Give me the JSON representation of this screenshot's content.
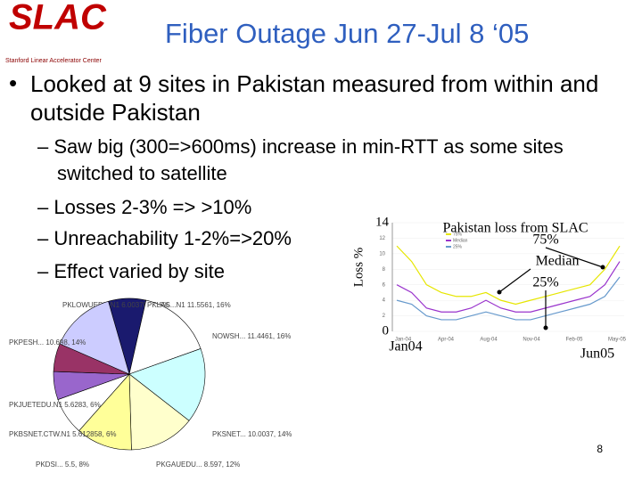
{
  "header": {
    "logo": "SLAC",
    "logo_subtitle": "Stanford Linear Accelerator Center",
    "title": "Fiber Outage Jun 27-Jul 8 ‘05"
  },
  "bullet": "Looked at 9 sites in Pakistan measured from within and outside Pakistan",
  "sub_bullets": [
    "– Saw big (300=>600ms) increase in min-RTT as some sites switched to satellite",
    "– Losses 2-3% => >10%",
    "– Unreachability 1-2%=>20%",
    "– Effect varied by site"
  ],
  "pie": {
    "slices": [
      {
        "label": "PKLOWUEDU.N1 6.0037037, 8%",
        "value": 8,
        "color": "#1a1a6e"
      },
      {
        "label": "PKLAS...N1 11.5561, 16%",
        "value": 16,
        "color": "#ffffff"
      },
      {
        "label": "NOWSH... 11.4461, 16%",
        "value": 16,
        "color": "#ccffff"
      },
      {
        "label": "PKSNET... 10.0037, 14%",
        "value": 14,
        "color": "#ffffcc"
      },
      {
        "label": "PKGAUEDU... 8.597, 12%",
        "value": 12,
        "color": "#ffff99"
      },
      {
        "label": "PKDSI... 5.5, 8%",
        "value": 8,
        "color": "#ffffff"
      },
      {
        "label": "PKBSNET.CTW.N1 5.612858, 6%",
        "value": 6,
        "color": "#9966cc"
      },
      {
        "label": "PKJUETEDU.N1 5.6283, 6%",
        "value": 6,
        "color": "#993366"
      },
      {
        "label": "PKPESH... 10.698, 14%",
        "value": 14,
        "color": "#ccccff"
      }
    ]
  },
  "loss_chart": {
    "type": "line",
    "title": "Pakistan loss from SLAC",
    "y_label": "Loss %",
    "ylim": [
      0,
      14
    ],
    "yticks": [
      {
        "value": 0,
        "label": "0"
      },
      2,
      4,
      6,
      8,
      10,
      12,
      {
        "value": 14,
        "label": "14"
      }
    ],
    "x_labels": [
      "Jan04",
      "Jun05"
    ],
    "x_ticks": [
      "Jan-04",
      "Apr-04",
      "Aug-04",
      "Nov-04",
      "Feb-05",
      "May-05"
    ],
    "series": [
      {
        "name": "75%",
        "color": "#e6e600",
        "values": [
          11,
          9,
          6,
          5,
          4.5,
          4.5,
          5,
          4,
          3.5,
          4,
          4.5,
          5,
          5.5,
          6,
          8,
          11
        ]
      },
      {
        "name": "Median",
        "color": "#9933cc",
        "values": [
          6,
          5,
          3,
          2.5,
          2.5,
          3,
          4,
          3,
          2.5,
          2.5,
          3,
          3.5,
          4,
          4.5,
          6,
          9
        ]
      },
      {
        "name": "25%",
        "color": "#6699cc",
        "values": [
          4,
          3.5,
          2,
          1.5,
          1.5,
          2,
          2.5,
          2,
          1.5,
          1.5,
          2,
          2.5,
          3,
          3.5,
          4.5,
          7
        ]
      }
    ],
    "annotations": [
      "Median"
    ]
  },
  "page_number": "8"
}
